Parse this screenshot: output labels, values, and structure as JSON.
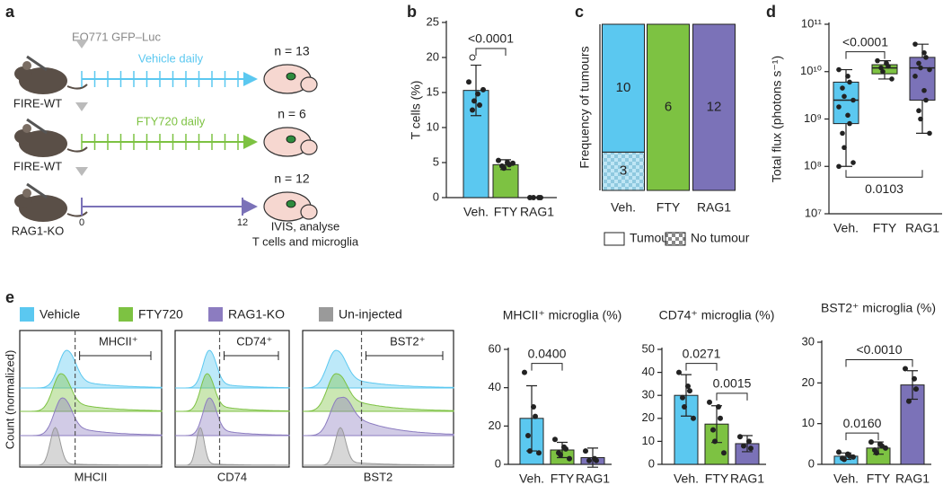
{
  "panel_labels": [
    "a",
    "b",
    "c",
    "d",
    "e"
  ],
  "schematic": {
    "reporter": "EO771 GFP–Luc",
    "groups": [
      {
        "mouse": "FIRE-WT",
        "treatment": "Vehicle daily",
        "n": "n = 13"
      },
      {
        "mouse": "FIRE-WT",
        "treatment": "FTY720 daily",
        "n": "n = 6"
      },
      {
        "mouse": "RAG1-KO",
        "n": "n = 12"
      }
    ],
    "day_start": 0,
    "day_end": 12,
    "endpoint": [
      "IVIS, analyse",
      "T cells and microglia"
    ]
  },
  "flow": {
    "legend": [
      {
        "name": "Vehicle",
        "color": "#5bc8f0"
      },
      {
        "name": "FTY720",
        "color": "#7dc242"
      },
      {
        "name": "RAG1-KO",
        "color": "#8c7cc0"
      },
      {
        "name": "Un-injected",
        "color": "#9a9a9a"
      }
    ],
    "ylabel": "Count (normalized)",
    "panels": [
      {
        "xlabel": "MHCII",
        "gate": "MHCII⁺"
      },
      {
        "xlabel": "CD74",
        "gate": "CD74⁺"
      },
      {
        "xlabel": "BST2",
        "gate": "BST2⁺"
      }
    ]
  },
  "chart_data": [
    {
      "type": "bar",
      "ylabel": "T cells (%)",
      "categories": [
        "Veh.",
        "FTY",
        "RAG1"
      ],
      "values": [
        15.3,
        4.7,
        0
      ],
      "errors": [
        3.6,
        0.7,
        0
      ],
      "points": [
        [
          16.5,
          14.8,
          13.2,
          12.5,
          13.8,
          15.4
        ],
        [
          5.3,
          5.0,
          4.7,
          4.5,
          4.2,
          4.9
        ],
        [
          0,
          0,
          0,
          0
        ]
      ],
      "outliers": [
        [
          20
        ],
        [],
        []
      ],
      "colors": [
        "#5bc8f0",
        "#7dc242",
        "#7b72b8"
      ],
      "ylim": [
        0,
        25
      ],
      "yticks": [
        0,
        5,
        10,
        15,
        20,
        25
      ],
      "comparisons": [
        {
          "label": "<0.0001",
          "between": [
            0,
            1
          ]
        }
      ]
    },
    {
      "type": "stacked_bar",
      "ylabel": "Frequency of tumours",
      "categories": [
        "Veh.",
        "FTY",
        "RAG1"
      ],
      "series": [
        {
          "name": "Tumour",
          "colors": [
            "#5bc8f0",
            "#7dc242",
            "#7b72b8"
          ],
          "values": [
            10,
            6,
            12
          ]
        },
        {
          "name": "No tumour",
          "pattern": "checker",
          "values": [
            3,
            0,
            0
          ]
        }
      ]
    },
    {
      "type": "box",
      "ylabel": "Total flux (photons s⁻¹)",
      "categories": [
        "Veh.",
        "FTY",
        "RAG1"
      ],
      "colors": [
        "#5bc8f0",
        "#7dc242",
        "#7b72b8"
      ],
      "log_scale": true,
      "boxes": [
        {
          "min": 100000000.0,
          "q1": 800000000.0,
          "median": 2500000000.0,
          "q3": 6000000000.0,
          "max": 11000000000.0
        },
        {
          "min": 7000000000.0,
          "q1": 9000000000.0,
          "median": 12000000000.0,
          "q3": 14000000000.0,
          "max": 17000000000.0
        },
        {
          "min": 500000000.0,
          "q1": 2500000000.0,
          "median": 12000000000.0,
          "q3": 20000000000.0,
          "max": 38000000000.0
        }
      ],
      "points": [
        [
          11000000000.0,
          8000000000.0,
          6000000000.0,
          4500000000.0,
          3000000000.0,
          2500000000.0,
          1800000000.0,
          1200000000.0,
          800000000.0,
          500000000.0,
          250000000.0,
          120000000.0,
          100000000.0
        ],
        [
          17000000000.0,
          15000000000.0,
          13000000000.0,
          12000000000.0,
          10000000000.0,
          7000000000.0
        ],
        [
          38000000000.0,
          25000000000.0,
          20000000000.0,
          15000000000.0,
          12000000000.0,
          11000000000.0,
          8000000000.0,
          4000000000.0,
          2500000000.0,
          1500000000.0,
          1000000000.0,
          500000000.0
        ]
      ],
      "ylim": [
        10000000.0,
        100000000000.0
      ],
      "yticks": [
        {
          "value": 10000000.0,
          "label": "10⁷"
        },
        {
          "value": 100000000.0,
          "label": "10⁸"
        },
        {
          "value": 1000000000.0,
          "label": "10⁹"
        },
        {
          "value": 10000000000.0,
          "label": "10¹⁰"
        },
        {
          "value": 100000000000.0,
          "label": "10¹¹"
        }
      ],
      "comparisons": [
        {
          "label": "<0.0001",
          "between": [
            0,
            1
          ],
          "side": "above"
        },
        {
          "label": "0.0103",
          "between": [
            0,
            2
          ],
          "side": "below"
        }
      ]
    },
    {
      "type": "bar",
      "title": "MHCII⁺ microglia (%)",
      "categories": [
        "Veh.",
        "FTY",
        "RAG1"
      ],
      "values": [
        24,
        7.5,
        3.5
      ],
      "errors": [
        17,
        4,
        5
      ],
      "points": [
        [
          48,
          30,
          25,
          15,
          7,
          6
        ],
        [
          13,
          9,
          8,
          6,
          5,
          3
        ],
        [
          7,
          3,
          2,
          2
        ]
      ],
      "colors": [
        "#5bc8f0",
        "#7dc242",
        "#7b72b8"
      ],
      "ylim": [
        0,
        60
      ],
      "yticks": [
        0,
        20,
        40,
        60
      ],
      "comparisons": [
        {
          "label": "0.0400",
          "between": [
            0,
            1
          ]
        }
      ]
    },
    {
      "type": "bar",
      "title": "CD74⁺ microglia (%)",
      "categories": [
        "Veh.",
        "FTY",
        "RAG1"
      ],
      "values": [
        30,
        17.5,
        9
      ],
      "errors": [
        9,
        8,
        3.5
      ],
      "points": [
        [
          40,
          34,
          32,
          29,
          25,
          20
        ],
        [
          27,
          25,
          20,
          15,
          10,
          5
        ],
        [
          12,
          10,
          7,
          8
        ]
      ],
      "colors": [
        "#5bc8f0",
        "#7dc242",
        "#7b72b8"
      ],
      "ylim": [
        0,
        50
      ],
      "yticks": [
        0,
        10,
        20,
        30,
        40,
        50
      ],
      "comparisons": [
        {
          "label": "0.0271",
          "between": [
            0,
            1
          ]
        },
        {
          "label": "0.0015",
          "between": [
            1,
            2
          ]
        }
      ]
    },
    {
      "type": "bar",
      "title": "BST2⁺ microglia (%)",
      "categories": [
        "Veh.",
        "FTY",
        "RAG1"
      ],
      "values": [
        2,
        4,
        19.5
      ],
      "errors": [
        0.8,
        1.5,
        3.5
      ],
      "points": [
        [
          3,
          2.5,
          2,
          1.5,
          1.2,
          1.8
        ],
        [
          5.5,
          5,
          4.5,
          3.5,
          2.8,
          4
        ],
        [
          23.5,
          21,
          18.5,
          15.5
        ]
      ],
      "colors": [
        "#5bc8f0",
        "#7dc242",
        "#7b72b8"
      ],
      "ylim": [
        0,
        30
      ],
      "yticks": [
        0,
        10,
        20,
        30
      ],
      "comparisons": [
        {
          "label": "0.0160",
          "between": [
            0,
            1
          ]
        },
        {
          "label": "<0.0010",
          "between": [
            0,
            2
          ]
        }
      ]
    }
  ]
}
